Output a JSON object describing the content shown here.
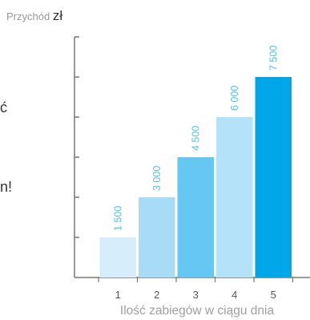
{
  "chart_data": {
    "type": "bar",
    "ylabel_prefix": "Przychód",
    "ylabel_unit": "zł",
    "xlabel": "Ilość zabiegów w ciągu dnia",
    "categories": [
      "1",
      "2",
      "3",
      "4",
      "5"
    ],
    "values": [
      1500,
      3000,
      4500,
      6000,
      7500
    ],
    "value_labels": [
      "1 500",
      "3 000",
      "4 500",
      "6 000",
      "7 500"
    ],
    "ylim": [
      0,
      9000
    ],
    "grid": false,
    "bar_colors": [
      "#d6eefb",
      "#a8dcf6",
      "#66c8f2",
      "#b4e2f9",
      "#00a7e8"
    ],
    "label_color": "#4cc2ee",
    "axis_color": "#777777"
  },
  "side_text": {
    "left_fragment_1": "ć",
    "left_fragment_2": "n!"
  }
}
